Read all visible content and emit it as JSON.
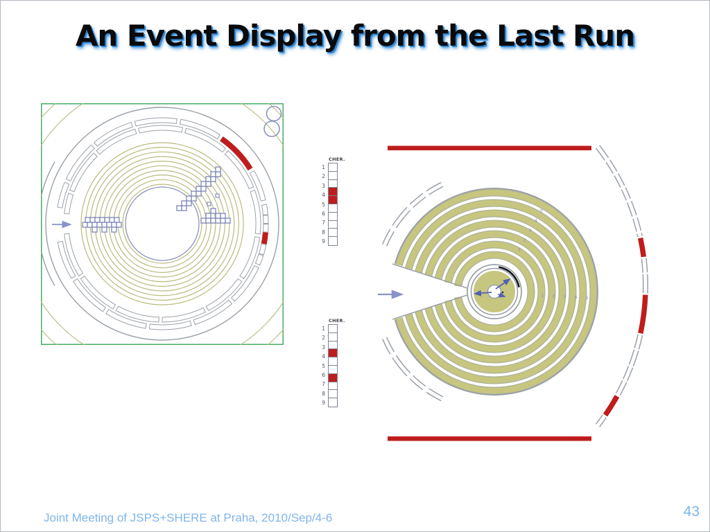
{
  "slide": {
    "title": "An Event Display from the Last Run",
    "footer": "Joint Meeting of JSPS+SHERE at Praha, 2010/Sep/4-6",
    "page_number": "43"
  },
  "scales": {
    "upper": {
      "label": "CHER.",
      "numbers": [
        "1",
        "2",
        "3",
        "4",
        "5",
        "6",
        "7",
        "8",
        "9"
      ],
      "cell_count": 10,
      "active_cells": [
        4,
        5
      ]
    },
    "lower": {
      "label": "CHER.",
      "numbers": [
        "1",
        "2",
        "3",
        "4",
        "5",
        "6",
        "7",
        "8",
        "9"
      ],
      "cell_count": 10,
      "active_cells": [
        4,
        7
      ]
    }
  },
  "right_display": {
    "hit_numbers": [
      "1",
      "2",
      "3",
      "4",
      "5"
    ]
  },
  "colors": {
    "accent_red": "#bf1d1d",
    "olive_ring": "#b9b97e",
    "olive_fill": "#c6c67f",
    "structure_gray": "#9aa0a8",
    "hit_blue": "#7d85b5",
    "arrow_blue": "#8a93c8",
    "frame_green": "#3aa45c",
    "footer_blue": "#7fb5e9",
    "title_shadow_blue": "#2e86d4"
  }
}
